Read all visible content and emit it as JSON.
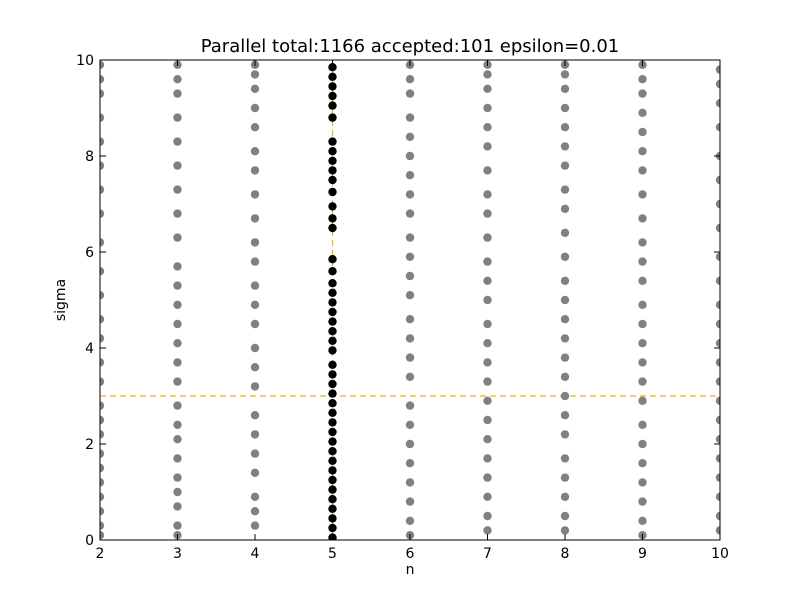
{
  "chart_data": {
    "type": "scatter",
    "title": "Parallel total:1166 accepted:101 epsilon=0.01",
    "xlabel": "n",
    "ylabel": "sigma",
    "xlim": [
      2,
      10
    ],
    "ylim": [
      0,
      10
    ],
    "x_ticks": [
      "2",
      "3",
      "4",
      "5",
      "6",
      "7",
      "8",
      "9",
      "10"
    ],
    "y_ticks": [
      "0",
      "2",
      "4",
      "6",
      "8",
      "10"
    ],
    "grid": false,
    "reference_lines": [
      {
        "orientation": "horizontal",
        "value": 3,
        "style": "dashed",
        "color": "#e6b800"
      },
      {
        "orientation": "vertical",
        "value": 5,
        "style": "dashed",
        "color": "#e6b800"
      }
    ],
    "series": [
      {
        "color": "#808080",
        "points": [
          [
            2,
            0.1
          ],
          [
            2,
            0.3
          ],
          [
            2,
            0.6
          ],
          [
            2,
            0.9
          ],
          [
            2,
            1.2
          ],
          [
            2,
            1.5
          ],
          [
            2,
            1.8
          ],
          [
            2,
            2.2
          ],
          [
            2,
            2.5
          ],
          [
            2,
            2.8
          ],
          [
            2,
            3.3
          ],
          [
            2,
            3.7
          ],
          [
            2,
            4.2
          ],
          [
            2,
            4.6
          ],
          [
            2,
            5.1
          ],
          [
            2,
            5.6
          ],
          [
            2,
            6.2
          ],
          [
            2,
            6.8
          ],
          [
            2,
            7.3
          ],
          [
            2,
            7.8
          ],
          [
            2,
            8.3
          ],
          [
            2,
            8.8
          ],
          [
            2,
            9.3
          ],
          [
            2,
            9.6
          ],
          [
            2,
            9.9
          ],
          [
            3,
            0.1
          ],
          [
            3,
            0.3
          ],
          [
            3,
            0.7
          ],
          [
            3,
            1.0
          ],
          [
            3,
            1.3
          ],
          [
            3,
            1.7
          ],
          [
            3,
            2.1
          ],
          [
            3,
            2.4
          ],
          [
            3,
            2.8
          ],
          [
            3,
            3.3
          ],
          [
            3,
            3.7
          ],
          [
            3,
            4.1
          ],
          [
            3,
            4.5
          ],
          [
            3,
            4.9
          ],
          [
            3,
            5.3
          ],
          [
            3,
            5.7
          ],
          [
            3,
            6.3
          ],
          [
            3,
            6.8
          ],
          [
            3,
            7.3
          ],
          [
            3,
            7.8
          ],
          [
            3,
            8.3
          ],
          [
            3,
            8.8
          ],
          [
            3,
            9.3
          ],
          [
            3,
            9.6
          ],
          [
            3,
            9.9
          ],
          [
            4,
            0.3
          ],
          [
            4,
            0.6
          ],
          [
            4,
            0.9
          ],
          [
            4,
            1.4
          ],
          [
            4,
            1.8
          ],
          [
            4,
            2.2
          ],
          [
            4,
            2.6
          ],
          [
            4,
            3.2
          ],
          [
            4,
            3.6
          ],
          [
            4,
            4.0
          ],
          [
            4,
            4.5
          ],
          [
            4,
            4.9
          ],
          [
            4,
            5.3
          ],
          [
            4,
            5.8
          ],
          [
            4,
            6.2
          ],
          [
            4,
            6.7
          ],
          [
            4,
            7.2
          ],
          [
            4,
            7.7
          ],
          [
            4,
            8.1
          ],
          [
            4,
            8.6
          ],
          [
            4,
            9.0
          ],
          [
            4,
            9.4
          ],
          [
            4,
            9.7
          ],
          [
            4,
            9.9
          ],
          [
            6,
            0.1
          ],
          [
            6,
            0.4
          ],
          [
            6,
            0.8
          ],
          [
            6,
            1.2
          ],
          [
            6,
            1.6
          ],
          [
            6,
            2.0
          ],
          [
            6,
            2.4
          ],
          [
            6,
            2.8
          ],
          [
            6,
            3.4
          ],
          [
            6,
            3.8
          ],
          [
            6,
            4.2
          ],
          [
            6,
            4.6
          ],
          [
            6,
            5.1
          ],
          [
            6,
            5.5
          ],
          [
            6,
            5.9
          ],
          [
            6,
            6.3
          ],
          [
            6,
            6.8
          ],
          [
            6,
            7.2
          ],
          [
            6,
            7.6
          ],
          [
            6,
            8.0
          ],
          [
            6,
            8.4
          ],
          [
            6,
            8.8
          ],
          [
            6,
            9.3
          ],
          [
            6,
            9.6
          ],
          [
            6,
            9.9
          ],
          [
            7,
            0.2
          ],
          [
            7,
            0.5
          ],
          [
            7,
            0.9
          ],
          [
            7,
            1.3
          ],
          [
            7,
            1.7
          ],
          [
            7,
            2.1
          ],
          [
            7,
            2.5
          ],
          [
            7,
            2.9
          ],
          [
            7,
            3.3
          ],
          [
            7,
            3.7
          ],
          [
            7,
            4.1
          ],
          [
            7,
            4.5
          ],
          [
            7,
            5.0
          ],
          [
            7,
            5.4
          ],
          [
            7,
            5.8
          ],
          [
            7,
            6.3
          ],
          [
            7,
            6.8
          ],
          [
            7,
            7.2
          ],
          [
            7,
            7.7
          ],
          [
            7,
            8.2
          ],
          [
            7,
            8.6
          ],
          [
            7,
            9.0
          ],
          [
            7,
            9.4
          ],
          [
            7,
            9.7
          ],
          [
            7,
            9.9
          ],
          [
            8,
            0.2
          ],
          [
            8,
            0.5
          ],
          [
            8,
            0.9
          ],
          [
            8,
            1.3
          ],
          [
            8,
            1.7
          ],
          [
            8,
            2.2
          ],
          [
            8,
            2.6
          ],
          [
            8,
            3.0
          ],
          [
            8,
            3.4
          ],
          [
            8,
            3.8
          ],
          [
            8,
            4.2
          ],
          [
            8,
            4.6
          ],
          [
            8,
            5.0
          ],
          [
            8,
            5.4
          ],
          [
            8,
            5.9
          ],
          [
            8,
            6.4
          ],
          [
            8,
            6.9
          ],
          [
            8,
            7.3
          ],
          [
            8,
            7.8
          ],
          [
            8,
            8.2
          ],
          [
            8,
            8.6
          ],
          [
            8,
            9.0
          ],
          [
            8,
            9.4
          ],
          [
            8,
            9.7
          ],
          [
            8,
            9.9
          ],
          [
            9,
            0.1
          ],
          [
            9,
            0.4
          ],
          [
            9,
            0.8
          ],
          [
            9,
            1.2
          ],
          [
            9,
            1.6
          ],
          [
            9,
            2.0
          ],
          [
            9,
            2.4
          ],
          [
            9,
            2.9
          ],
          [
            9,
            3.3
          ],
          [
            9,
            3.7
          ],
          [
            9,
            4.1
          ],
          [
            9,
            4.5
          ],
          [
            9,
            4.9
          ],
          [
            9,
            5.4
          ],
          [
            9,
            5.8
          ],
          [
            9,
            6.2
          ],
          [
            9,
            6.7
          ],
          [
            9,
            7.2
          ],
          [
            9,
            7.7
          ],
          [
            9,
            8.1
          ],
          [
            9,
            8.5
          ],
          [
            9,
            8.9
          ],
          [
            9,
            9.3
          ],
          [
            9,
            9.6
          ],
          [
            9,
            9.9
          ],
          [
            10,
            0.2
          ],
          [
            10,
            0.5
          ],
          [
            10,
            0.9
          ],
          [
            10,
            1.3
          ],
          [
            10,
            1.7
          ],
          [
            10,
            2.1
          ],
          [
            10,
            2.5
          ],
          [
            10,
            2.9
          ],
          [
            10,
            3.3
          ],
          [
            10,
            3.7
          ],
          [
            10,
            4.1
          ],
          [
            10,
            4.5
          ],
          [
            10,
            4.9
          ],
          [
            10,
            5.4
          ],
          [
            10,
            5.9
          ],
          [
            10,
            6.5
          ],
          [
            10,
            7.0
          ],
          [
            10,
            7.5
          ],
          [
            10,
            8.0
          ],
          [
            10,
            8.6
          ],
          [
            10,
            9.1
          ],
          [
            10,
            9.5
          ],
          [
            10,
            9.8
          ]
        ]
      },
      {
        "color": "#000000",
        "points": [
          [
            5,
            0.05
          ],
          [
            5,
            0.25
          ],
          [
            5,
            0.45
          ],
          [
            5,
            0.65
          ],
          [
            5,
            0.85
          ],
          [
            5,
            1.05
          ],
          [
            5,
            1.25
          ],
          [
            5,
            1.45
          ],
          [
            5,
            1.65
          ],
          [
            5,
            1.85
          ],
          [
            5,
            2.05
          ],
          [
            5,
            2.25
          ],
          [
            5,
            2.45
          ],
          [
            5,
            2.65
          ],
          [
            5,
            2.85
          ],
          [
            5,
            3.05
          ],
          [
            5,
            3.25
          ],
          [
            5,
            3.45
          ],
          [
            5,
            3.65
          ],
          [
            5,
            3.95
          ],
          [
            5,
            4.15
          ],
          [
            5,
            4.35
          ],
          [
            5,
            4.55
          ],
          [
            5,
            4.75
          ],
          [
            5,
            4.95
          ],
          [
            5,
            5.15
          ],
          [
            5,
            5.35
          ],
          [
            5,
            5.6
          ],
          [
            5,
            5.85
          ],
          [
            5,
            6.5
          ],
          [
            5,
            6.7
          ],
          [
            5,
            6.95
          ],
          [
            5,
            7.25
          ],
          [
            5,
            7.5
          ],
          [
            5,
            7.7
          ],
          [
            5,
            7.9
          ],
          [
            5,
            8.1
          ],
          [
            5,
            8.3
          ],
          [
            5,
            8.8
          ],
          [
            5,
            9.05
          ],
          [
            5,
            9.25
          ],
          [
            5,
            9.45
          ],
          [
            5,
            9.65
          ],
          [
            5,
            9.85
          ]
        ]
      }
    ]
  }
}
